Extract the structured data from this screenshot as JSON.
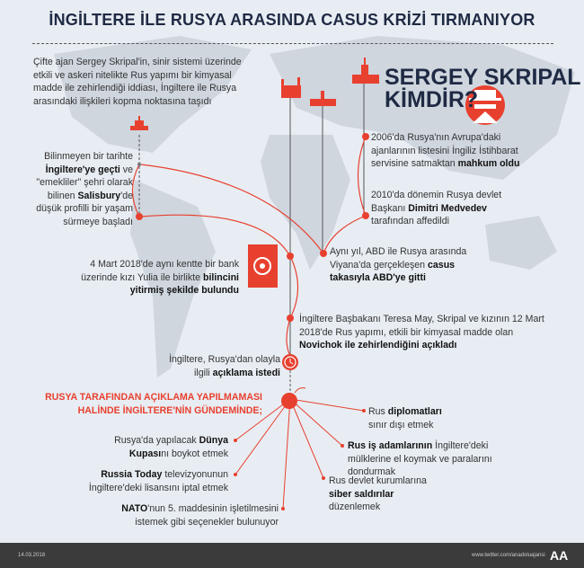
{
  "title": "İNGİLTERE İLE RUSYA ARASINDA CASUS KRİZİ TIRMANIYOR",
  "intro": "Çifte ajan Sergey Skripal'in, sinir sistemi üzerinde etkili ve askeri nitelikte Rus yapımı bir kimyasal madde ile zehirlendiği iddiası, İngiltere ile Rusya arasındaki ilişkileri kopma noktasına taşıdı",
  "heading": {
    "line1": "SERGEY SKRIPAL",
    "line2": "KİMDİR?"
  },
  "accent": "#e8402f",
  "events": [
    {
      "p": [
        "Bilinmeyen bir tarihte ",
        "İngiltere'ye geçti",
        " ve \"emekliler\" şehri olarak bilinen ",
        "Salisbury",
        "'de düşük profilli bir yaşam sürmeye başladı"
      ]
    },
    {
      "p": [
        "2006'da Rusya'nın Avrupa'daki ajanlarının listesini İngiliz İstihbarat servisine satmaktan ",
        "mahkum oldu"
      ]
    },
    {
      "p": [
        "2010'da dönemin Rusya devlet Başkanı ",
        "Dimitri Medvedev",
        " tarafından affedildi"
      ]
    },
    {
      "p": [
        "Aynı yıl, ABD ile Rusya arasında Viyana'da gerçekleşen ",
        "casus takasıyla ABD'ye gitti"
      ]
    },
    {
      "p": [
        "4 Mart 2018'de aynı kentte bir bank üzerinde kızı Yulia ile birlikte ",
        "bilincini yitirmiş şekilde bulundu"
      ]
    },
    {
      "p": [
        "İngiltere Başbakanı Teresa May, Skripal ve kızının 12 Mart 2018'de Rus yapımı, etkili bir kimyasal madde olan ",
        "Novichok ile zehirlendiğini açıkladı"
      ]
    },
    {
      "p": [
        "İngiltere, Rusya'dan olayla ilgili ",
        "açıklama istedi"
      ]
    }
  ],
  "agenda_heading": {
    "line1": "RUSYA TARAFINDAN AÇIKLAMA YAPILMAMASI",
    "line2": "HALİNDE İNGİLTERE'NİN GÜNDEMİNDE;"
  },
  "options": [
    {
      "p": [
        "Rus ",
        "diplomatları",
        " sınır dışı etmek"
      ]
    },
    {
      "p": [
        "Rusya'da yapılacak ",
        "Dünya Kupası",
        "nı boykot etmek"
      ]
    },
    {
      "p": [
        "Rus iş adamlarının",
        " İngiltere'deki mülklerine el koymak ve paralarını dondurmak"
      ]
    },
    {
      "p": [
        "Russia Today",
        " televizyonunun İngiltere'deki lisansını iptal etmek"
      ]
    },
    {
      "p": [
        "Rus devlet kurumlarına ",
        "siber saldırılar",
        " düzenlemek"
      ]
    },
    {
      "p": [
        "NATO",
        "'nun 5. maddesinin işletilmesini istemek gibi seçenekler bulunuyor"
      ]
    }
  ],
  "footer": {
    "date": "14.03.2018",
    "twitter": "www.twitter.com/anadoluajansi",
    "logo": "AA"
  }
}
